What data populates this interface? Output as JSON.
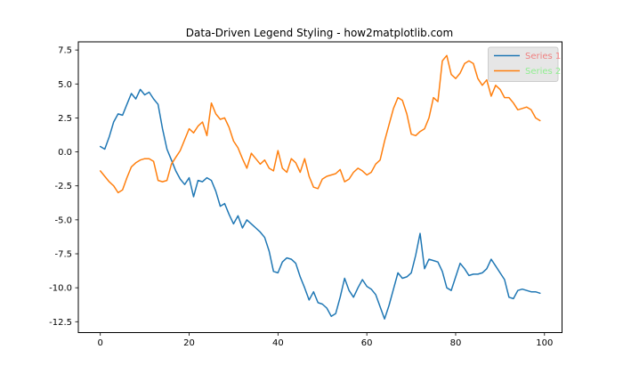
{
  "figure": {
    "background": "#ffffff",
    "spine_color": "#000000",
    "tick_color": "#000000"
  },
  "chart_data": {
    "type": "line",
    "title": "Data-Driven Legend Styling - how2matplotlib.com",
    "xlabel": "",
    "ylabel": "",
    "grid": false,
    "xlim": [
      -4.95,
      103.95
    ],
    "ylim": [
      -13.3,
      8.1
    ],
    "x_ticks": [
      0,
      20,
      40,
      60,
      80,
      100
    ],
    "x_tick_labels": [
      "0",
      "20",
      "40",
      "60",
      "80",
      "100"
    ],
    "y_ticks": [
      7.5,
      5.0,
      2.5,
      0.0,
      -2.5,
      -5.0,
      -7.5,
      -10.0,
      -12.5
    ],
    "y_tick_labels": [
      "7.5",
      "5.0",
      "2.5",
      "0.0",
      "-2.5",
      "-5.0",
      "-7.5",
      "-10.0",
      "-12.5"
    ],
    "x": [
      0,
      1,
      2,
      3,
      4,
      5,
      6,
      7,
      8,
      9,
      10,
      11,
      12,
      13,
      14,
      15,
      16,
      17,
      18,
      19,
      20,
      21,
      22,
      23,
      24,
      25,
      26,
      27,
      28,
      29,
      30,
      31,
      32,
      33,
      34,
      35,
      36,
      37,
      38,
      39,
      40,
      41,
      42,
      43,
      44,
      45,
      46,
      47,
      48,
      49,
      50,
      51,
      52,
      53,
      54,
      55,
      56,
      57,
      58,
      59,
      60,
      61,
      62,
      63,
      64,
      65,
      66,
      67,
      68,
      69,
      70,
      71,
      72,
      73,
      74,
      75,
      76,
      77,
      78,
      79,
      80,
      81,
      82,
      83,
      84,
      85,
      86,
      87,
      88,
      89,
      90,
      91,
      92,
      93,
      94,
      95,
      96,
      97,
      98,
      99
    ],
    "series": [
      {
        "name": "Series 1",
        "color": "#1f77b4",
        "values": [
          0.4,
          0.2,
          1.1,
          2.2,
          2.8,
          2.7,
          3.5,
          4.3,
          3.9,
          4.6,
          4.2,
          4.4,
          3.9,
          3.5,
          1.7,
          0.2,
          -0.6,
          -1.4,
          -2.0,
          -2.4,
          -1.9,
          -3.3,
          -2.1,
          -2.2,
          -1.9,
          -2.1,
          -2.9,
          -4.0,
          -3.8,
          -4.6,
          -5.3,
          -4.7,
          -5.6,
          -5.0,
          -5.3,
          -5.6,
          -5.9,
          -6.3,
          -7.3,
          -8.8,
          -8.9,
          -8.1,
          -7.8,
          -7.9,
          -8.2,
          -9.2,
          -10.0,
          -10.9,
          -10.3,
          -11.1,
          -11.2,
          -11.5,
          -12.1,
          -11.9,
          -10.7,
          -9.3,
          -10.2,
          -10.7,
          -10.0,
          -9.4,
          -9.9,
          -10.1,
          -10.5,
          -11.4,
          -12.3,
          -11.3,
          -10.1,
          -8.9,
          -9.3,
          -9.2,
          -8.9,
          -7.6,
          -6.0,
          -8.6,
          -7.9,
          -8.0,
          -8.1,
          -8.8,
          -10.0,
          -10.2,
          -9.2,
          -8.2,
          -8.6,
          -9.1,
          -9.0,
          -9.0,
          -8.9,
          -8.6,
          -7.9,
          -8.4,
          -8.9,
          -9.4,
          -10.7,
          -10.8,
          -10.2,
          -10.1,
          -10.2,
          -10.3,
          -10.3,
          -10.4
        ]
      },
      {
        "name": "Series 2",
        "color": "#ff7f0e",
        "values": [
          -1.4,
          -1.8,
          -2.2,
          -2.5,
          -3.0,
          -2.8,
          -1.9,
          -1.1,
          -0.8,
          -0.6,
          -0.5,
          -0.5,
          -0.7,
          -2.1,
          -2.2,
          -2.1,
          -0.9,
          -0.4,
          0.1,
          0.9,
          1.7,
          1.4,
          1.9,
          2.2,
          1.2,
          3.6,
          2.8,
          2.4,
          2.5,
          1.8,
          0.8,
          0.3,
          -0.5,
          -1.2,
          -0.1,
          -0.5,
          -0.9,
          -0.6,
          -1.2,
          -1.4,
          0.1,
          -1.2,
          -1.5,
          -0.5,
          -0.8,
          -1.5,
          -0.5,
          -1.8,
          -2.6,
          -2.7,
          -2.0,
          -1.8,
          -1.7,
          -1.6,
          -1.3,
          -2.2,
          -2.0,
          -1.5,
          -1.2,
          -1.4,
          -1.7,
          -1.5,
          -0.9,
          -0.6,
          0.8,
          2.0,
          3.2,
          4.0,
          3.8,
          2.8,
          1.3,
          1.2,
          1.5,
          1.7,
          2.5,
          4.0,
          3.7,
          6.7,
          7.1,
          5.7,
          5.4,
          5.8,
          6.5,
          6.7,
          6.5,
          5.4,
          4.9,
          5.3,
          4.1,
          4.9,
          4.6,
          4.0,
          4.0,
          3.6,
          3.1,
          3.2,
          3.3,
          3.1,
          2.5,
          2.3
        ]
      }
    ],
    "legend": {
      "position": "upper right",
      "face_color": "#e5e5e5",
      "edge_color": "#cccccc",
      "entries": [
        {
          "label": "Series 1",
          "line_color": "#1f77b4",
          "text_color": "#f08080"
        },
        {
          "label": "Series 2",
          "line_color": "#ff7f0e",
          "text_color": "#90ee90"
        }
      ]
    }
  }
}
